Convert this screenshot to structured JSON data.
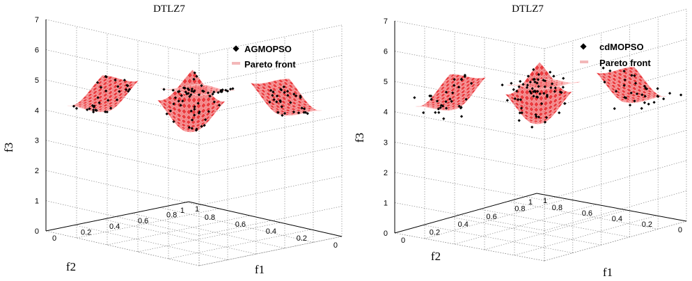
{
  "chart_data": [
    {
      "type": "scatter",
      "title": "DTLZ7",
      "xlabel": "f1",
      "ylabel": "f2",
      "zlabel": "f3",
      "xlim": [
        0,
        1
      ],
      "ylim": [
        0,
        1
      ],
      "zlim": [
        0,
        7
      ],
      "x_ticks": [
        "0",
        "0.2",
        "0.4",
        "0.6",
        "0.8",
        "1"
      ],
      "y_ticks": [
        "0",
        "0.2",
        "0.4",
        "0.6",
        "0.8",
        "1"
      ],
      "z_ticks": [
        "0",
        "1",
        "2",
        "3",
        "4",
        "5",
        "6",
        "7"
      ],
      "grid": true,
      "legend_position": "top-right",
      "surface_color": "#e8262a",
      "point_color": "#000000",
      "series": [
        {
          "name": "AGMOPSO",
          "kind": "points",
          "spread": 0.012,
          "seed": 11
        },
        {
          "name": "Pareto front",
          "kind": "surface"
        }
      ]
    },
    {
      "type": "scatter",
      "title": "DTLZ7",
      "xlabel": "f1",
      "ylabel": "f2",
      "zlabel": "f3",
      "xlim": [
        0,
        1
      ],
      "ylim": [
        0,
        1
      ],
      "zlim": [
        0,
        7
      ],
      "x_ticks": [
        "0",
        "0.2",
        "0.4",
        "0.6",
        "0.8",
        "1"
      ],
      "y_ticks": [
        "0",
        "0.2",
        "0.4",
        "0.6",
        "0.8",
        "1"
      ],
      "z_ticks": [
        "0",
        "1",
        "2",
        "3",
        "4",
        "5",
        "6",
        "7"
      ],
      "grid": true,
      "legend_position": "top-right",
      "surface_color": "#e8262a",
      "point_color": "#000000",
      "series": [
        {
          "name": "cdMOPSO",
          "kind": "points",
          "spread": 0.07,
          "seed": 29
        },
        {
          "name": "Pareto front",
          "kind": "surface"
        }
      ]
    }
  ]
}
